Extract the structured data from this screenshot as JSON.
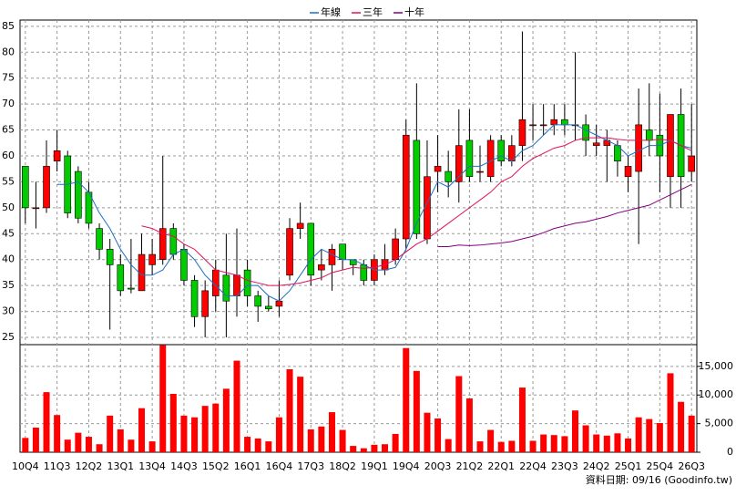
{
  "chart_data": [
    {
      "type": "candlestick",
      "categories": [
        "10Q4",
        null,
        null,
        "11Q3",
        null,
        null,
        "12Q2",
        null,
        null,
        "13Q1",
        null,
        null,
        "13Q4",
        null,
        null,
        "14Q3",
        null,
        null,
        "15Q2",
        null,
        null,
        "16Q1",
        null,
        null,
        "16Q4",
        null,
        null,
        "17Q3",
        null,
        null,
        "18Q2",
        null,
        null,
        "19Q1",
        null,
        null,
        "19Q4",
        null,
        null,
        "20Q3",
        null,
        null,
        "21Q2",
        null,
        null,
        "22Q1",
        null,
        null,
        "22Q4",
        null,
        null,
        "23Q3",
        null,
        null,
        "24Q2",
        null,
        null,
        "25Q1",
        null,
        null,
        "25Q4",
        null,
        null,
        "26Q3"
      ],
      "open": [
        58,
        50,
        50,
        59,
        60,
        57,
        53,
        46,
        42,
        39,
        34.5,
        34,
        39,
        40,
        46,
        42,
        36,
        29,
        33,
        37,
        33,
        38,
        33,
        31,
        31,
        37,
        46,
        47,
        38,
        39,
        43,
        40,
        39,
        36,
        38,
        40,
        44,
        63,
        44,
        57,
        57,
        55,
        63,
        57,
        56,
        63,
        59,
        62,
        66,
        66,
        66,
        67,
        66,
        66,
        62,
        62,
        62,
        56,
        57,
        65,
        64,
        56,
        68,
        57
      ],
      "high": [
        58,
        55,
        63,
        65,
        61,
        58,
        55,
        47,
        44,
        41,
        44,
        45,
        44,
        60,
        47,
        43,
        37,
        36,
        40,
        45,
        46,
        40,
        34,
        33,
        36,
        48,
        51,
        47,
        42,
        43,
        43,
        40,
        40,
        41,
        43,
        46,
        67,
        74,
        63,
        64,
        61,
        69,
        69,
        62,
        64,
        64,
        64,
        84,
        70,
        70,
        70,
        70,
        80,
        68,
        66,
        65,
        63,
        60,
        73,
        74,
        72,
        68,
        73,
        70
      ],
      "low": [
        47,
        46,
        49,
        57,
        48,
        47,
        46,
        40,
        26.5,
        33,
        33.5,
        34,
        37,
        39,
        40,
        35,
        27,
        25,
        30,
        25,
        29,
        31,
        28,
        30,
        29,
        36,
        44,
        35,
        36,
        34,
        38,
        37,
        35,
        35,
        37,
        39,
        42,
        44,
        43,
        53,
        52,
        51,
        55,
        55,
        55,
        58,
        58,
        59,
        63,
        64,
        64,
        64,
        63,
        60,
        60,
        55,
        56,
        53,
        43,
        60,
        53,
        50,
        50,
        55
      ],
      "close": [
        50,
        50,
        58,
        61,
        49,
        48,
        47,
        42,
        39,
        34,
        34.3,
        41,
        41,
        46,
        41,
        36,
        29,
        34,
        38,
        32,
        37,
        33,
        31,
        30.5,
        32,
        46,
        47,
        37,
        39,
        42,
        40,
        39,
        36,
        40,
        40,
        44,
        64,
        45,
        56,
        58,
        55,
        62,
        56,
        57,
        63,
        59,
        62,
        67,
        66,
        66,
        67,
        66,
        66,
        63,
        62.5,
        63,
        59,
        58,
        66,
        63,
        60,
        68,
        56,
        60
      ],
      "up_color": "#ff0000",
      "down_color": "#00cc00",
      "series": [
        {
          "name": "年線",
          "color": "#1f6fc0",
          "values": [
            null,
            null,
            null,
            54.5,
            54.5,
            55,
            53,
            49,
            46,
            42,
            39,
            37,
            37,
            38,
            41,
            42,
            40,
            37,
            35,
            33,
            33,
            35,
            35,
            33,
            32,
            34,
            37,
            40,
            42,
            41,
            40,
            40,
            39,
            38,
            38,
            38.5,
            42,
            47,
            51,
            55,
            54,
            56,
            58,
            58,
            59,
            60,
            59,
            61,
            62,
            64,
            66,
            66,
            66,
            65,
            64,
            63,
            62,
            60,
            61,
            62,
            62,
            63,
            62,
            61.5
          ]
        },
        {
          "name": "三年",
          "color": "#e0105a",
          "values": [
            null,
            null,
            null,
            null,
            null,
            null,
            null,
            null,
            null,
            null,
            null,
            46.5,
            46,
            45,
            44.5,
            43,
            42,
            40,
            38,
            37.5,
            37,
            36,
            35.5,
            35,
            35,
            35.2,
            35.5,
            36,
            36.5,
            37.5,
            38,
            38.5,
            38.3,
            38.5,
            39,
            40,
            41.5,
            43,
            44,
            45.5,
            47,
            48.5,
            50,
            51.5,
            53,
            55,
            56,
            58,
            59.5,
            60.5,
            61.5,
            62,
            63,
            63.5,
            63.5,
            63.5,
            63.2,
            63,
            63,
            63,
            63.2,
            63,
            62,
            61
          ]
        },
        {
          "name": "十年",
          "color": "#800080",
          "values": [
            null,
            null,
            null,
            null,
            null,
            null,
            null,
            null,
            null,
            null,
            null,
            null,
            null,
            null,
            null,
            null,
            null,
            null,
            null,
            null,
            null,
            null,
            null,
            null,
            null,
            null,
            null,
            null,
            null,
            null,
            null,
            null,
            null,
            null,
            null,
            null,
            null,
            null,
            null,
            42.5,
            42.5,
            42.8,
            42.7,
            42.8,
            43,
            43.2,
            43.5,
            44,
            44.5,
            45.2,
            46,
            46.5,
            47,
            47.3,
            47.8,
            48.3,
            49,
            49.5,
            50,
            50.5,
            51.5,
            52.5,
            53.5,
            54.5
          ]
        }
      ],
      "ylim": [
        23.6,
        86.2
      ],
      "yticks": [
        25,
        30,
        35,
        40,
        45,
        50,
        55,
        60,
        65,
        70,
        75,
        80,
        85
      ],
      "grid": true,
      "legend": "top"
    },
    {
      "type": "bar",
      "color": "#ff0000",
      "values": [
        2500,
        4300,
        10500,
        6500,
        2200,
        3400,
        2700,
        1400,
        6400,
        4000,
        2200,
        7700,
        1900,
        18700,
        10200,
        6400,
        6100,
        8100,
        8500,
        11100,
        16000,
        2700,
        2400,
        1900,
        6100,
        14500,
        13200,
        4000,
        4500,
        7000,
        3900,
        1100,
        700,
        1300,
        1400,
        3200,
        18200,
        14200,
        6900,
        5900,
        2300,
        13300,
        9400,
        1900,
        3900,
        1800,
        2000,
        11300,
        2000,
        3100,
        3000,
        2800,
        7300,
        4700,
        3100,
        2900,
        3300,
        2400,
        6100,
        5800,
        5100,
        13800,
        8800,
        6400
      ],
      "ylim": [
        0,
        18800
      ],
      "yticks": [
        0,
        {
          "value": 5000,
          "label": "5,000"
        },
        {
          "value": 10000,
          "label": "10,000"
        },
        {
          "value": 15000,
          "label": "15,000"
        }
      ],
      "grid": true,
      "footnote": "資料日期: 09/16 (Goodinfo.tw)"
    }
  ]
}
